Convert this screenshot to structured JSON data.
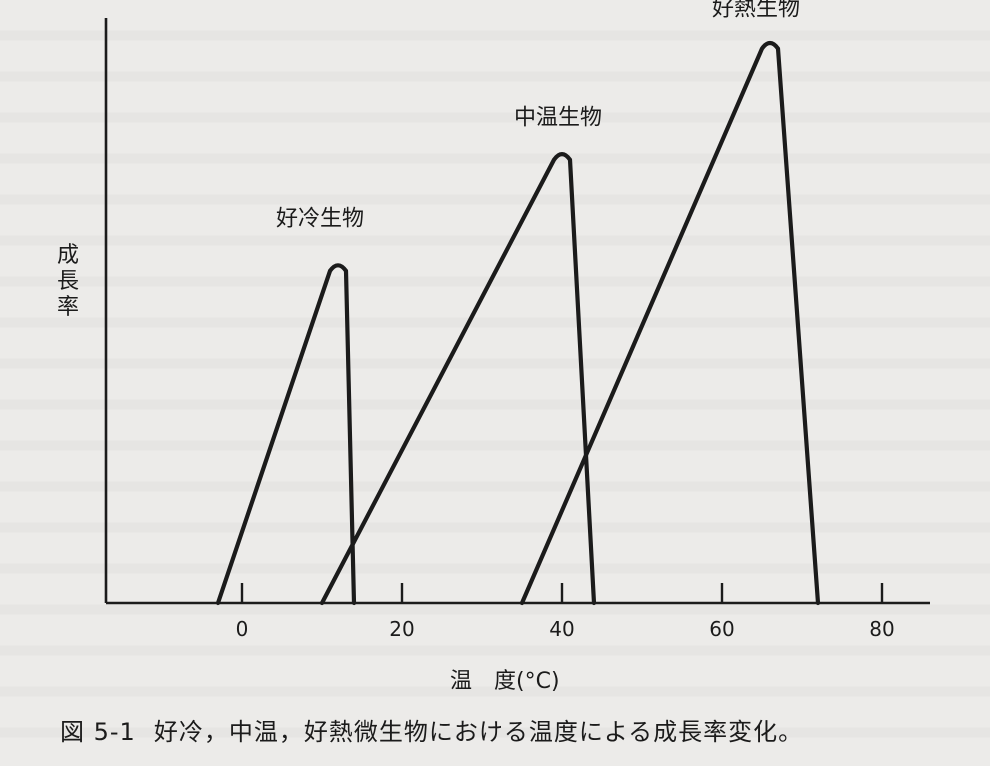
{
  "chart_data": {
    "type": "line",
    "ylabel": "成長率",
    "xlabel": "温　度(°C)",
    "xlim": [
      -17,
      86
    ],
    "ylim": [
      0,
      100
    ],
    "xticks": [
      0,
      20,
      40,
      60,
      80
    ],
    "series": [
      {
        "name": "好冷生物",
        "x": [
          -3,
          12,
          14
        ],
        "y": [
          0,
          58,
          0
        ]
      },
      {
        "name": "中温生物",
        "x": [
          10,
          40,
          44
        ],
        "y": [
          0,
          77,
          0
        ]
      },
      {
        "name": "好熱生物",
        "x": [
          35,
          66,
          72
        ],
        "y": [
          0,
          96,
          0
        ]
      }
    ]
  },
  "caption": {
    "figure_number": "図 5-1",
    "text": "好冷，中温，好熱微生物における温度による成長率変化。"
  }
}
